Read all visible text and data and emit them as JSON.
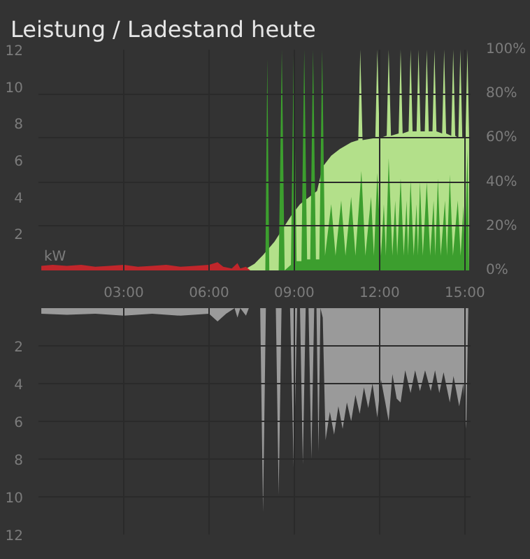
{
  "chart_data": [
    {
      "type": "area",
      "title": "Leistung / Ladestand heute",
      "ylabel": "kW",
      "xlim": [
        0,
        15.2
      ],
      "ylim": [
        0,
        12
      ],
      "y2lim": [
        0,
        100
      ],
      "xticks": [
        {
          "value": 3,
          "label": "03:00"
        },
        {
          "value": 6,
          "label": "06:00"
        },
        {
          "value": 9,
          "label": "09:00"
        },
        {
          "value": 12,
          "label": "12:00"
        },
        {
          "value": 15,
          "label": "15:00"
        }
      ],
      "yticks": [
        2,
        4,
        6,
        8,
        10,
        12
      ],
      "y2ticks": [
        {
          "value": 0,
          "label": "0%"
        },
        {
          "value": 20,
          "label": "20%"
        },
        {
          "value": 40,
          "label": "40%"
        },
        {
          "value": 60,
          "label": "60%"
        },
        {
          "value": 80,
          "label": "80%"
        },
        {
          "value": 100,
          "label": "100%"
        }
      ],
      "grid": true,
      "series": [
        {
          "color": "#b3e08a",
          "axis": "y2",
          "x": [
            7.2,
            7.6,
            7.9,
            8.3,
            8.6,
            8.9,
            9.2,
            9.5,
            9.8,
            10.0,
            10.3,
            10.6,
            11.0,
            11.25,
            11.32,
            11.4,
            11.85,
            11.92,
            12.0,
            12.25,
            12.32,
            12.4,
            12.67,
            12.74,
            12.81,
            13.02,
            13.09,
            13.16,
            13.3,
            13.37,
            13.44,
            13.59,
            13.66,
            13.73,
            13.86,
            13.93,
            14.0,
            14.2,
            14.27,
            14.34,
            14.52,
            14.59,
            14.66,
            14.77,
            14.84,
            14.91,
            15.02,
            15.09,
            15.15
          ],
          "values": [
            0,
            3,
            7,
            13,
            19,
            25,
            30,
            33,
            36,
            47,
            52,
            55,
            58,
            59,
            100,
            59,
            60,
            100,
            60,
            61,
            100,
            61,
            62,
            100,
            62,
            63,
            100,
            63,
            63,
            100,
            63,
            63,
            100,
            63,
            63,
            100,
            63,
            62,
            100,
            62,
            61,
            100,
            61,
            60,
            100,
            60,
            60,
            100,
            60
          ]
        },
        {
          "color": "#3c9e2e",
          "x": [
            7.98,
            8.05,
            8.12,
            8.45,
            8.56,
            8.66,
            8.88,
            8.98,
            9.08,
            9.25,
            9.35,
            9.45,
            9.56,
            9.66,
            9.76,
            9.88,
            9.98,
            10.08,
            10.3,
            10.45,
            10.65,
            10.8,
            11.0,
            11.15,
            11.36,
            11.5,
            11.7,
            11.8,
            11.92,
            12.05,
            12.15,
            12.22,
            12.32,
            12.45,
            12.55,
            12.62,
            12.74,
            12.85,
            12.95,
            13.0,
            13.09,
            13.2,
            13.3,
            13.35,
            13.42,
            13.52,
            13.66,
            13.78,
            13.9,
            13.96,
            14.05,
            14.15,
            14.3,
            14.37,
            14.47,
            14.58,
            14.75,
            14.85,
            14.95,
            15.0,
            15.09,
            15.15
          ],
          "values": [
            0,
            11.5,
            0,
            0,
            12,
            0,
            0.3,
            12,
            0.5,
            0.5,
            12,
            0.6,
            0.6,
            12,
            0.6,
            0.6,
            12,
            0.8,
            3.6,
            0.8,
            3.8,
            0.8,
            4.0,
            0.8,
            5.4,
            0.8,
            4.0,
            0.8,
            5.3,
            0.8,
            3.6,
            0.8,
            6.1,
            0.8,
            3.8,
            0.8,
            5.0,
            0.8,
            3.8,
            0.8,
            4.9,
            0.8,
            3.6,
            0.8,
            4.8,
            0.8,
            4.8,
            0.8,
            3.8,
            0.8,
            5.0,
            0.8,
            3.8,
            0.8,
            5.2,
            0.8,
            3.8,
            0.8,
            3.5,
            0.8,
            6.6,
            0
          ]
        },
        {
          "color": "#c0262b",
          "x": [
            0.1,
            0.5,
            1,
            1.5,
            2,
            2.5,
            3,
            3.5,
            4,
            4.5,
            5,
            5.5,
            6,
            6.3,
            6.5,
            6.8,
            7.0,
            7.1,
            7.3,
            7.45
          ],
          "values": [
            0.25,
            0.3,
            0.25,
            0.3,
            0.2,
            0.25,
            0.3,
            0.2,
            0.25,
            0.3,
            0.2,
            0.25,
            0.3,
            0.45,
            0.2,
            0.1,
            0.4,
            0.1,
            0.2,
            0
          ]
        }
      ]
    },
    {
      "type": "area",
      "xlim": [
        0,
        15.2
      ],
      "ylim": [
        12,
        0
      ],
      "tick_labels": "y",
      "grid": true,
      "xticks": [
        {
          "value": 3,
          "label": null
        },
        {
          "value": 6,
          "label": null
        },
        {
          "value": 9,
          "label": null
        },
        {
          "value": 12,
          "label": null
        },
        {
          "value": 15,
          "label": null
        }
      ],
      "yticks": [
        2,
        4,
        6,
        8,
        10,
        12
      ],
      "series": [
        {
          "color": "#9a9a9a",
          "x": [
            0.1,
            1,
            2,
            3,
            4,
            5,
            6,
            6.3,
            6.6,
            6.9,
            7.0,
            7.1,
            7.3,
            7.4,
            7.8,
            7.9,
            8.0,
            8.35,
            8.45,
            8.55,
            8.85,
            8.98,
            9.1,
            9.2,
            9.3,
            9.4,
            9.5,
            9.6,
            9.7,
            9.78,
            9.85,
            9.92,
            10.0,
            10.1,
            10.25,
            10.4,
            10.55,
            10.7,
            10.85,
            11.0,
            11.15,
            11.3,
            11.45,
            11.6,
            11.75,
            11.92,
            12.05,
            12.2,
            12.32,
            12.45,
            12.6,
            12.74,
            12.9,
            13.09,
            13.25,
            13.42,
            13.6,
            13.8,
            13.95,
            14.1,
            14.25,
            14.47,
            14.6,
            14.8,
            14.95,
            15.05,
            15.12
          ],
          "values": [
            0.3,
            0.35,
            0.3,
            0.4,
            0.3,
            0.4,
            0.3,
            0.7,
            0.3,
            0,
            0.5,
            0,
            0.4,
            0,
            0,
            10.8,
            0,
            0,
            9.9,
            0,
            0,
            8.6,
            0,
            0,
            8.3,
            0,
            0,
            8.0,
            0,
            0,
            7.6,
            0,
            0.5,
            7.0,
            5.5,
            6.7,
            5.2,
            6.4,
            5.0,
            6.0,
            4.6,
            5.6,
            4.2,
            5.3,
            4.0,
            5.8,
            3.8,
            5.0,
            6.0,
            3.5,
            4.8,
            5.0,
            3.3,
            4.5,
            3.3,
            4.4,
            3.3,
            4.4,
            3.3,
            4.5,
            3.4,
            5.0,
            3.6,
            5.2,
            4.0,
            6.4,
            0
          ]
        }
      ]
    }
  ]
}
